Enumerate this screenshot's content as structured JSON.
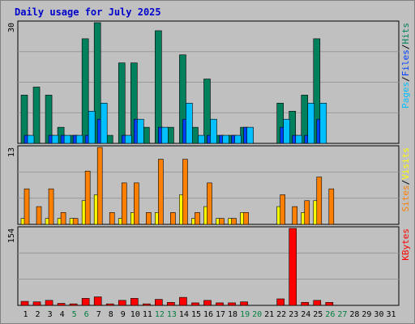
{
  "title": "Daily usage for July 2025",
  "colors": {
    "background": "#c0c0c0",
    "grid": "#999999",
    "hits": "#00805c",
    "files": "#0040ff",
    "pages": "#00c0ff",
    "visits": "#ffff00",
    "sites": "#ff8000",
    "kbytes": "#ff0000",
    "day_label": "#000000",
    "weekend_label": "#008040"
  },
  "chart_data": [
    {
      "type": "bar",
      "panel": "hits-files-pages",
      "x": [
        1,
        2,
        3,
        4,
        5,
        6,
        7,
        8,
        9,
        10,
        11,
        12,
        13,
        14,
        15,
        16,
        17,
        18,
        19,
        20,
        21,
        22,
        23,
        24,
        25,
        26,
        27,
        28,
        29,
        30,
        31
      ],
      "ylim": [
        0,
        30
      ],
      "max_label": "30",
      "legend": {
        "a": "Pages",
        "sep1": "/",
        "b": "Files",
        "sep2": "/",
        "c": "Hits"
      },
      "series": [
        {
          "name": "Hits",
          "values": [
            12,
            14,
            12,
            4,
            2,
            26,
            30,
            2,
            20,
            20,
            4,
            28,
            4,
            22,
            4,
            16,
            2,
            2,
            4,
            0,
            0,
            10,
            8,
            12,
            26,
            0,
            0,
            0,
            0,
            0,
            0
          ]
        },
        {
          "name": "Files",
          "values": [
            2,
            0,
            2,
            2,
            2,
            2,
            6,
            0,
            2,
            6,
            0,
            4,
            0,
            6,
            0,
            2,
            2,
            2,
            4,
            0,
            0,
            4,
            2,
            2,
            6,
            0,
            0,
            0,
            0,
            0,
            0
          ]
        },
        {
          "name": "Pages",
          "values": [
            2,
            0,
            2,
            2,
            2,
            8,
            10,
            0,
            2,
            6,
            0,
            4,
            0,
            10,
            2,
            6,
            2,
            2,
            4,
            0,
            0,
            6,
            2,
            10,
            10,
            0,
            0,
            0,
            0,
            0,
            0
          ]
        }
      ]
    },
    {
      "type": "bar",
      "panel": "visits-sites",
      "x": [
        1,
        2,
        3,
        4,
        5,
        6,
        7,
        8,
        9,
        10,
        11,
        12,
        13,
        14,
        15,
        16,
        17,
        18,
        19,
        20,
        21,
        22,
        23,
        24,
        25,
        26,
        27,
        28,
        29,
        30,
        31
      ],
      "ylim": [
        0,
        13
      ],
      "max_label": "13",
      "legend": {
        "a": "Sites",
        "sep1": "/",
        "b": "Visits"
      },
      "series": [
        {
          "name": "Visits",
          "values": [
            1,
            0,
            1,
            1,
            1,
            4,
            5,
            0,
            1,
            2,
            0,
            2,
            0,
            5,
            1,
            3,
            1,
            1,
            2,
            0,
            0,
            3,
            0,
            2,
            4,
            0,
            0,
            0,
            0,
            0,
            0
          ]
        },
        {
          "name": "Sites",
          "values": [
            6,
            3,
            6,
            2,
            1,
            9,
            13,
            2,
            7,
            7,
            2,
            11,
            2,
            11,
            2,
            7,
            1,
            1,
            2,
            0,
            0,
            5,
            3,
            4,
            8,
            6,
            0,
            0,
            0,
            0,
            0
          ]
        }
      ]
    },
    {
      "type": "bar",
      "panel": "kbytes",
      "x": [
        1,
        2,
        3,
        4,
        5,
        6,
        7,
        8,
        9,
        10,
        11,
        12,
        13,
        14,
        15,
        16,
        17,
        18,
        19,
        20,
        21,
        22,
        23,
        24,
        25,
        26,
        27,
        28,
        29,
        30,
        31
      ],
      "ylim": [
        0,
        154
      ],
      "max_label": "154",
      "legend": {
        "a": "KBytes"
      },
      "series": [
        {
          "name": "KBytes",
          "values": [
            8,
            7,
            10,
            4,
            3,
            14,
            17,
            3,
            10,
            14,
            3,
            12,
            6,
            16,
            5,
            10,
            5,
            5,
            7,
            0,
            0,
            13,
            154,
            6,
            10,
            6,
            0,
            0,
            0,
            0,
            0
          ]
        }
      ]
    }
  ],
  "x_axis": {
    "labels": [
      "1",
      "2",
      "3",
      "4",
      "5",
      "6",
      "7",
      "8",
      "9",
      "10",
      "11",
      "12",
      "13",
      "14",
      "15",
      "16",
      "17",
      "18",
      "19",
      "20",
      "21",
      "22",
      "23",
      "24",
      "25",
      "26",
      "27",
      "28",
      "29",
      "30",
      "31"
    ],
    "weekend_days": [
      5,
      6,
      12,
      13,
      19,
      20,
      26,
      27
    ]
  }
}
